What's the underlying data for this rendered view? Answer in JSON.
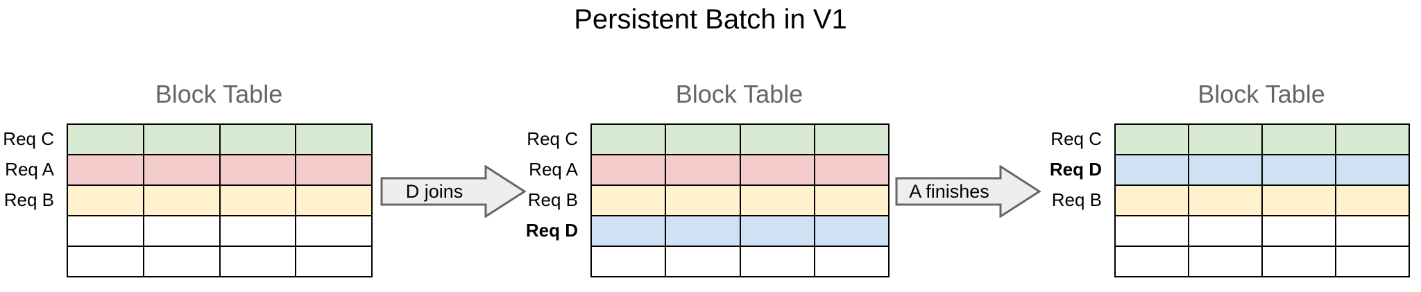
{
  "title": "Persistent Batch in V1",
  "colors": {
    "req_c_green": "#d9ead3",
    "req_a_red": "#f4cccc",
    "req_b_yellow": "#fff2cc",
    "req_d_blue": "#cfe2f3",
    "empty_white": "#ffffff",
    "arrow_fill": "#eeeeee",
    "arrow_border": "#666666",
    "heading_gray": "#666666",
    "cell_border": "#000000"
  },
  "grid": {
    "columns": 4,
    "rows": 5
  },
  "tables": [
    {
      "heading": "Block Table",
      "rows": [
        {
          "label": "Req C",
          "color": "req_c_green",
          "bold": false
        },
        {
          "label": "Req A",
          "color": "req_a_red",
          "bold": false
        },
        {
          "label": "Req B",
          "color": "req_b_yellow",
          "bold": false
        },
        {
          "label": "",
          "color": "empty_white",
          "bold": false
        },
        {
          "label": "",
          "color": "empty_white",
          "bold": false
        }
      ]
    },
    {
      "heading": "Block Table",
      "rows": [
        {
          "label": "Req C",
          "color": "req_c_green",
          "bold": false
        },
        {
          "label": "Req A",
          "color": "req_a_red",
          "bold": false
        },
        {
          "label": "Req B",
          "color": "req_b_yellow",
          "bold": false
        },
        {
          "label": "Req D",
          "color": "req_d_blue",
          "bold": true
        },
        {
          "label": "",
          "color": "empty_white",
          "bold": false
        }
      ]
    },
    {
      "heading": "Block Table",
      "rows": [
        {
          "label": "Req C",
          "color": "req_c_green",
          "bold": false
        },
        {
          "label": "Req D",
          "color": "req_d_blue",
          "bold": true
        },
        {
          "label": "Req B",
          "color": "req_b_yellow",
          "bold": false
        },
        {
          "label": "",
          "color": "empty_white",
          "bold": false
        },
        {
          "label": "",
          "color": "empty_white",
          "bold": false
        }
      ]
    }
  ],
  "arrows": [
    {
      "label": "D joins"
    },
    {
      "label": "A finishes"
    }
  ]
}
